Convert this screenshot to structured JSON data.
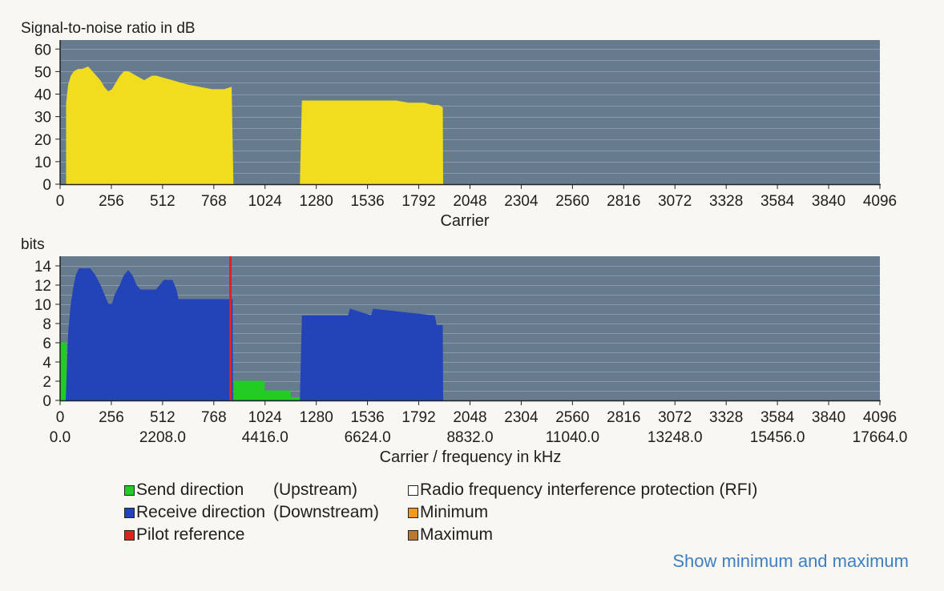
{
  "chart_data": [
    {
      "type": "area",
      "ylabel": "Signal-to-noise ratio in dB",
      "xlabel": "Carrier",
      "xlim": [
        0,
        4096
      ],
      "ylim": [
        0,
        64
      ],
      "yticks": [
        0,
        10,
        20,
        30,
        40,
        50,
        60
      ],
      "xticks": [
        0,
        256,
        512,
        768,
        1024,
        1280,
        1536,
        1792,
        2048,
        2304,
        2560,
        2816,
        3072,
        3328,
        3584,
        3840,
        4096
      ],
      "grid": true,
      "color": "#f2dc1e",
      "series": [
        {
          "x": [
            32,
            42,
            55,
            70,
            90,
            110,
            140,
            160,
            180,
            200,
            220,
            240,
            260,
            280,
            300,
            320,
            340,
            360,
            380,
            400,
            420,
            440,
            460,
            480,
            520,
            560,
            600,
            640,
            700,
            760,
            820,
            855,
            864
          ],
          "y": [
            36,
            44,
            48,
            50,
            51,
            51,
            52,
            50,
            48,
            46,
            43,
            41,
            42,
            45,
            48,
            50,
            50,
            49,
            48,
            47,
            46,
            47,
            48,
            48,
            47,
            46,
            45,
            44,
            43,
            42,
            42,
            43,
            0
          ]
        },
        {
          "x": [
            1200,
            1210,
            1260,
            1320,
            1400,
            1500,
            1600,
            1680,
            1740,
            1780,
            1820,
            1860,
            1890,
            1910,
            1912
          ],
          "y": [
            0,
            37,
            37,
            37,
            37,
            37,
            37,
            37,
            36,
            36,
            36,
            35,
            35,
            34,
            0
          ]
        }
      ]
    },
    {
      "type": "area",
      "ylabel": "bits",
      "xlabel": "Carrier / frequency in kHz",
      "xlim": [
        0,
        4096
      ],
      "ylim": [
        0,
        15
      ],
      "yticks": [
        0,
        2,
        4,
        6,
        8,
        10,
        12,
        14
      ],
      "xticks": [
        0,
        256,
        512,
        768,
        1024,
        1280,
        1536,
        1792,
        2048,
        2304,
        2560,
        2816,
        3072,
        3328,
        3584,
        3840,
        4096
      ],
      "xticks2": [
        "0.0",
        "2208.0",
        "4416.0",
        "6624.0",
        "8832.0",
        "11040.0",
        "13248.0",
        "15456.0",
        "17664.0"
      ],
      "grid": true,
      "series": [
        {
          "name": "Send direction",
          "color": "#22cc22",
          "x": [
            0,
            0,
            30,
            32,
            870,
            870,
            1020,
            1020,
            1150,
            1150,
            1200,
            1200
          ],
          "y": [
            0,
            6,
            6,
            0,
            0,
            2,
            2,
            1,
            1,
            0.3,
            0.3,
            0
          ]
        },
        {
          "name": "Receive direction",
          "color": "#2344b8",
          "x": [
            30,
            42,
            55,
            70,
            80,
            95,
            150,
            175,
            200,
            220,
            240,
            260,
            275,
            300,
            320,
            340,
            360,
            380,
            400,
            480,
            520,
            560,
            580,
            590,
            860,
            862,
            1200,
            1210,
            1440,
            1450,
            1555,
            1565,
            1870,
            1880,
            1910,
            1912
          ],
          "y": [
            0,
            7,
            10,
            12,
            13,
            13.7,
            13.7,
            13,
            12,
            11,
            10,
            10,
            11,
            12,
            13,
            13.5,
            13,
            12,
            11.5,
            11.5,
            12.5,
            12.5,
            11.5,
            10.5,
            10.5,
            0,
            0,
            8.8,
            8.8,
            9.5,
            8.8,
            9.5,
            8.8,
            7.8,
            7.8,
            0
          ]
        },
        {
          "name": "Pilot reference",
          "color": "#dd2222",
          "x": [
            851,
            851
          ],
          "y": [
            0,
            15
          ]
        }
      ]
    }
  ],
  "legend": {
    "send": {
      "label": "Send direction",
      "qualifier": "(Upstream)",
      "color": "#22cc22"
    },
    "receive": {
      "label": "Receive direction",
      "qualifier": "(Downstream)",
      "color": "#2344b8"
    },
    "pilot": {
      "label": "Pilot reference",
      "color": "#dd2222"
    },
    "rfi": {
      "label": "Radio frequency interference protection (RFI)",
      "color": "#ffffff"
    },
    "minimum": {
      "label": "Minimum",
      "color": "#ee9a1a"
    },
    "maximum": {
      "label": "Maximum",
      "color": "#b87a30"
    }
  },
  "link": {
    "label": "Show minimum and maximum"
  }
}
